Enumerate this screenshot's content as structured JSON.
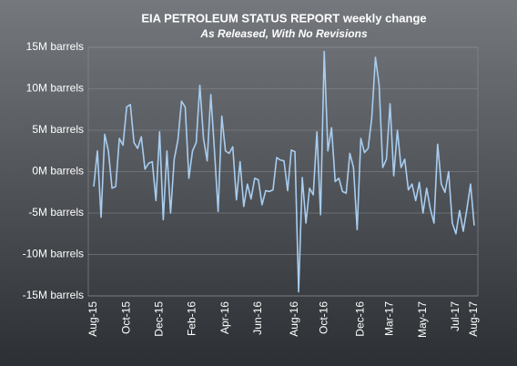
{
  "chart_data": {
    "type": "line",
    "title": "EIA PETROLEUM STATUS REPORT weekly change",
    "subtitle": "As Released, With No Revisions",
    "categories": [
      "Aug-15",
      null,
      null,
      null,
      null,
      null,
      null,
      null,
      null,
      "Oct-15",
      null,
      null,
      null,
      null,
      null,
      null,
      null,
      null,
      "Dec-15",
      null,
      null,
      null,
      null,
      null,
      null,
      null,
      null,
      "Feb-16",
      null,
      null,
      null,
      null,
      null,
      null,
      null,
      null,
      "Apr-16",
      null,
      null,
      null,
      null,
      null,
      null,
      null,
      null,
      "Jun-16",
      null,
      null,
      null,
      null,
      null,
      null,
      null,
      null,
      null,
      "Aug-16",
      null,
      null,
      null,
      null,
      null,
      null,
      null,
      "Oct-16",
      null,
      null,
      null,
      null,
      null,
      null,
      null,
      null,
      null,
      "Dec-16",
      null,
      null,
      null,
      null,
      null,
      null,
      null,
      "Mar-17",
      null,
      null,
      null,
      null,
      null,
      null,
      null,
      null,
      "May-17",
      null,
      null,
      null,
      null,
      null,
      null,
      null,
      null,
      "Jul-17",
      null,
      null,
      null,
      null,
      "Aug-17"
    ],
    "values": [
      -1.8,
      2.5,
      -5.5,
      4.5,
      2.5,
      -2,
      -1.8,
      4,
      3.2,
      7.8,
      8.1,
      3.5,
      2.8,
      4.2,
      0.3,
      1,
      1.2,
      -3.5,
      4.8,
      -5.8,
      2.5,
      -5,
      1.5,
      3.8,
      8.5,
      7.8,
      -0.8,
      2.5,
      3.5,
      10.4,
      4,
      1.3,
      9.3,
      2.5,
      -4.8,
      6.7,
      2.5,
      2.2,
      3,
      -3.4,
      1.2,
      -4.2,
      -1.5,
      -3.3,
      -0.8,
      -1,
      -4,
      -2.3,
      -2.4,
      -2.2,
      1.7,
      1.4,
      1.3,
      -2.3,
      2.6,
      2.4,
      -14.5,
      -0.7,
      -6.2,
      -2,
      -2.8,
      4.8,
      -5.2,
      14.5,
      2.5,
      5.3,
      -1.2,
      -0.8,
      -2.4,
      -2.6,
      2.2,
      0.5,
      -7,
      4,
      2.3,
      2.8,
      6.5,
      13.8,
      10.5,
      0.5,
      1.5,
      8.2,
      -0.5,
      5,
      0.5,
      1.5,
      -2.2,
      -1.5,
      -3.5,
      -1.3,
      -5,
      -2,
      -4.5,
      -6.2,
      3.3,
      -1.5,
      -2.5,
      0,
      -6.2,
      -7.5,
      -4.7,
      -7.2,
      -4.5,
      -1.5,
      -6.5
    ],
    "color": "#a8cdf0",
    "ylim": [
      -15,
      15
    ],
    "yticks": [
      {
        "value": -15,
        "label": "-15M barrels"
      },
      {
        "value": -10,
        "label": "-10M barrels"
      },
      {
        "value": -5,
        "label": "-5M barrels"
      },
      {
        "value": 0,
        "label": "0M barrels"
      },
      {
        "value": 5,
        "label": "5M barrels"
      },
      {
        "value": 10,
        "label": "10M barrels"
      },
      {
        "value": 15,
        "label": "15M barrels"
      }
    ],
    "grid": true
  }
}
